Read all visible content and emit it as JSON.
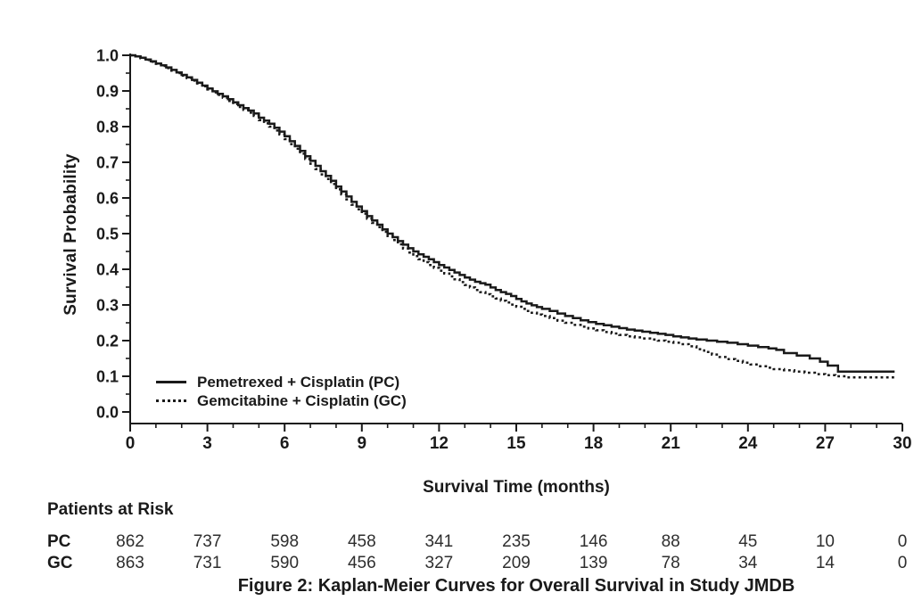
{
  "figure": {
    "caption": "Figure 2: Kaplan-Meier Curves for Overall Survival in Study JMDB"
  },
  "chart_data": {
    "type": "line",
    "subtype": "kaplan-meier-step",
    "title": "",
    "xlabel": "Survival Time (months)",
    "ylabel": "Survival Probability",
    "xlim": [
      0,
      30
    ],
    "ylim": [
      0.0,
      1.0
    ],
    "x_ticks": [
      0,
      3,
      6,
      9,
      12,
      15,
      18,
      21,
      24,
      27,
      30
    ],
    "x_minor_step": 1,
    "y_ticks": [
      0.0,
      0.1,
      0.2,
      0.3,
      0.4,
      0.5,
      0.6,
      0.7,
      0.8,
      0.9,
      1.0
    ],
    "y_minor_step": 0.05,
    "grid": false,
    "legend_position": "lower-left-inside",
    "series": [
      {
        "name": "Pemetrexed + Cisplatin (PC)",
        "abbr": "PC",
        "line": "solid",
        "color": "#1a1a1a",
        "points": [
          [
            0,
            1.0
          ],
          [
            0.2,
            0.997
          ],
          [
            0.4,
            0.993
          ],
          [
            0.6,
            0.988
          ],
          [
            0.8,
            0.983
          ],
          [
            1.0,
            0.977
          ],
          [
            1.2,
            0.972
          ],
          [
            1.4,
            0.966
          ],
          [
            1.6,
            0.959
          ],
          [
            1.8,
            0.952
          ],
          [
            2.0,
            0.945
          ],
          [
            2.2,
            0.938
          ],
          [
            2.4,
            0.931
          ],
          [
            2.6,
            0.923
          ],
          [
            2.8,
            0.915
          ],
          [
            3.0,
            0.907
          ],
          [
            3.2,
            0.899
          ],
          [
            3.4,
            0.892
          ],
          [
            3.6,
            0.885
          ],
          [
            3.8,
            0.877
          ],
          [
            4.0,
            0.868
          ],
          [
            4.2,
            0.86
          ],
          [
            4.4,
            0.852
          ],
          [
            4.6,
            0.845
          ],
          [
            4.8,
            0.837
          ],
          [
            5.0,
            0.825
          ],
          [
            5.2,
            0.817
          ],
          [
            5.4,
            0.808
          ],
          [
            5.6,
            0.797
          ],
          [
            5.8,
            0.786
          ],
          [
            6.0,
            0.773
          ],
          [
            6.2,
            0.759
          ],
          [
            6.4,
            0.746
          ],
          [
            6.6,
            0.732
          ],
          [
            6.8,
            0.717
          ],
          [
            7.0,
            0.704
          ],
          [
            7.2,
            0.69
          ],
          [
            7.4,
            0.675
          ],
          [
            7.6,
            0.662
          ],
          [
            7.8,
            0.648
          ],
          [
            8.0,
            0.632
          ],
          [
            8.2,
            0.618
          ],
          [
            8.4,
            0.604
          ],
          [
            8.6,
            0.589
          ],
          [
            8.8,
            0.576
          ],
          [
            9.0,
            0.563
          ],
          [
            9.2,
            0.549
          ],
          [
            9.4,
            0.537
          ],
          [
            9.6,
            0.525
          ],
          [
            9.8,
            0.512
          ],
          [
            10.0,
            0.5
          ],
          [
            10.2,
            0.49
          ],
          [
            10.4,
            0.479
          ],
          [
            10.6,
            0.469
          ],
          [
            10.8,
            0.459
          ],
          [
            11.0,
            0.45
          ],
          [
            11.2,
            0.442
          ],
          [
            11.4,
            0.435
          ],
          [
            11.6,
            0.428
          ],
          [
            11.8,
            0.42
          ],
          [
            12.0,
            0.412
          ],
          [
            12.2,
            0.405
          ],
          [
            12.4,
            0.398
          ],
          [
            12.6,
            0.391
          ],
          [
            12.8,
            0.384
          ],
          [
            13.0,
            0.377
          ],
          [
            13.2,
            0.371
          ],
          [
            13.4,
            0.365
          ],
          [
            13.6,
            0.361
          ],
          [
            13.8,
            0.357
          ],
          [
            14.0,
            0.349
          ],
          [
            14.2,
            0.342
          ],
          [
            14.4,
            0.336
          ],
          [
            14.6,
            0.331
          ],
          [
            14.8,
            0.325
          ],
          [
            15.0,
            0.317
          ],
          [
            15.2,
            0.31
          ],
          [
            15.4,
            0.304
          ],
          [
            15.6,
            0.299
          ],
          [
            15.8,
            0.294
          ],
          [
            16.0,
            0.289
          ],
          [
            16.3,
            0.283
          ],
          [
            16.6,
            0.276
          ],
          [
            16.9,
            0.269
          ],
          [
            17.2,
            0.263
          ],
          [
            17.5,
            0.257
          ],
          [
            17.8,
            0.252
          ],
          [
            18.1,
            0.247
          ],
          [
            18.4,
            0.243
          ],
          [
            18.7,
            0.239
          ],
          [
            19.0,
            0.235
          ],
          [
            19.3,
            0.231
          ],
          [
            19.6,
            0.228
          ],
          [
            19.9,
            0.225
          ],
          [
            20.2,
            0.222
          ],
          [
            20.5,
            0.219
          ],
          [
            20.8,
            0.216
          ],
          [
            21.1,
            0.212
          ],
          [
            21.4,
            0.209
          ],
          [
            21.7,
            0.206
          ],
          [
            22.0,
            0.203
          ],
          [
            22.4,
            0.2
          ],
          [
            22.8,
            0.197
          ],
          [
            23.2,
            0.194
          ],
          [
            23.6,
            0.19
          ],
          [
            24.0,
            0.186
          ],
          [
            24.4,
            0.182
          ],
          [
            24.8,
            0.178
          ],
          [
            25.1,
            0.174
          ],
          [
            25.4,
            0.165
          ],
          [
            25.9,
            0.158
          ],
          [
            26.4,
            0.15
          ],
          [
            26.8,
            0.141
          ],
          [
            27.1,
            0.13
          ],
          [
            27.5,
            0.113
          ],
          [
            29.7,
            0.113
          ]
        ]
      },
      {
        "name": "Gemcitabine + Cisplatin (GC)",
        "abbr": "GC",
        "line": "dotted",
        "color": "#1a1a1a",
        "points": [
          [
            0,
            1.0
          ],
          [
            0.2,
            0.997
          ],
          [
            0.4,
            0.992
          ],
          [
            0.6,
            0.987
          ],
          [
            0.8,
            0.982
          ],
          [
            1.0,
            0.976
          ],
          [
            1.2,
            0.97
          ],
          [
            1.4,
            0.964
          ],
          [
            1.6,
            0.957
          ],
          [
            1.8,
            0.95
          ],
          [
            2.0,
            0.943
          ],
          [
            2.2,
            0.936
          ],
          [
            2.4,
            0.929
          ],
          [
            2.6,
            0.921
          ],
          [
            2.8,
            0.913
          ],
          [
            3.0,
            0.904
          ],
          [
            3.2,
            0.896
          ],
          [
            3.4,
            0.889
          ],
          [
            3.6,
            0.881
          ],
          [
            3.8,
            0.872
          ],
          [
            4.0,
            0.863
          ],
          [
            4.2,
            0.855
          ],
          [
            4.4,
            0.847
          ],
          [
            4.6,
            0.839
          ],
          [
            4.8,
            0.83
          ],
          [
            5.0,
            0.818
          ],
          [
            5.2,
            0.809
          ],
          [
            5.4,
            0.8
          ],
          [
            5.6,
            0.789
          ],
          [
            5.8,
            0.778
          ],
          [
            6.0,
            0.765
          ],
          [
            6.2,
            0.751
          ],
          [
            6.4,
            0.738
          ],
          [
            6.6,
            0.724
          ],
          [
            6.8,
            0.709
          ],
          [
            7.0,
            0.696
          ],
          [
            7.2,
            0.681
          ],
          [
            7.4,
            0.666
          ],
          [
            7.6,
            0.653
          ],
          [
            7.8,
            0.639
          ],
          [
            8.0,
            0.624
          ],
          [
            8.2,
            0.61
          ],
          [
            8.4,
            0.596
          ],
          [
            8.6,
            0.581
          ],
          [
            8.8,
            0.568
          ],
          [
            9.0,
            0.556
          ],
          [
            9.2,
            0.542
          ],
          [
            9.4,
            0.53
          ],
          [
            9.6,
            0.518
          ],
          [
            9.8,
            0.505
          ],
          [
            10.0,
            0.493
          ],
          [
            10.2,
            0.482
          ],
          [
            10.4,
            0.47
          ],
          [
            10.6,
            0.458
          ],
          [
            10.8,
            0.447
          ],
          [
            11.0,
            0.437
          ],
          [
            11.2,
            0.428
          ],
          [
            11.4,
            0.42
          ],
          [
            11.6,
            0.412
          ],
          [
            11.8,
            0.404
          ],
          [
            12.0,
            0.396
          ],
          [
            12.2,
            0.388
          ],
          [
            12.4,
            0.38
          ],
          [
            12.6,
            0.372
          ],
          [
            12.8,
            0.364
          ],
          [
            13.0,
            0.356
          ],
          [
            13.2,
            0.349
          ],
          [
            13.4,
            0.342
          ],
          [
            13.6,
            0.336
          ],
          [
            13.8,
            0.33
          ],
          [
            14.0,
            0.324
          ],
          [
            14.2,
            0.318
          ],
          [
            14.4,
            0.312
          ],
          [
            14.6,
            0.307
          ],
          [
            14.8,
            0.301
          ],
          [
            15.0,
            0.295
          ],
          [
            15.2,
            0.289
          ],
          [
            15.4,
            0.283
          ],
          [
            15.6,
            0.278
          ],
          [
            15.8,
            0.273
          ],
          [
            16.0,
            0.269
          ],
          [
            16.3,
            0.263
          ],
          [
            16.6,
            0.256
          ],
          [
            16.9,
            0.25
          ],
          [
            17.2,
            0.244
          ],
          [
            17.5,
            0.239
          ],
          [
            17.8,
            0.234
          ],
          [
            18.1,
            0.229
          ],
          [
            18.4,
            0.224
          ],
          [
            18.7,
            0.22
          ],
          [
            19.0,
            0.216
          ],
          [
            19.3,
            0.212
          ],
          [
            19.6,
            0.209
          ],
          [
            19.9,
            0.206
          ],
          [
            20.2,
            0.203
          ],
          [
            20.5,
            0.2
          ],
          [
            20.8,
            0.197
          ],
          [
            21.1,
            0.194
          ],
          [
            21.4,
            0.19
          ],
          [
            21.7,
            0.184
          ],
          [
            22.0,
            0.176
          ],
          [
            22.3,
            0.168
          ],
          [
            22.6,
            0.161
          ],
          [
            22.9,
            0.154
          ],
          [
            23.2,
            0.148
          ],
          [
            23.5,
            0.143
          ],
          [
            23.8,
            0.138
          ],
          [
            24.1,
            0.133
          ],
          [
            24.4,
            0.128
          ],
          [
            24.7,
            0.124
          ],
          [
            25.0,
            0.12
          ],
          [
            25.4,
            0.117
          ],
          [
            25.8,
            0.113
          ],
          [
            26.2,
            0.11
          ],
          [
            26.6,
            0.106
          ],
          [
            27.0,
            0.103
          ],
          [
            27.4,
            0.1
          ],
          [
            27.8,
            0.097
          ],
          [
            29.8,
            0.097
          ]
        ]
      }
    ]
  },
  "risk_table": {
    "title": "Patients at Risk",
    "time_points": [
      0,
      3,
      6,
      9,
      12,
      15,
      18,
      21,
      24,
      27,
      30
    ],
    "rows": [
      {
        "label": "PC",
        "counts": [
          862,
          737,
          598,
          458,
          341,
          235,
          146,
          88,
          45,
          10,
          0
        ]
      },
      {
        "label": "GC",
        "counts": [
          863,
          731,
          590,
          456,
          327,
          209,
          139,
          78,
          34,
          14,
          0
        ]
      }
    ]
  },
  "colors": {
    "line": "#1a1a1a",
    "text": "#1a1a1a",
    "risk_numbers": "#2e2e2e",
    "background": "#ffffff"
  }
}
